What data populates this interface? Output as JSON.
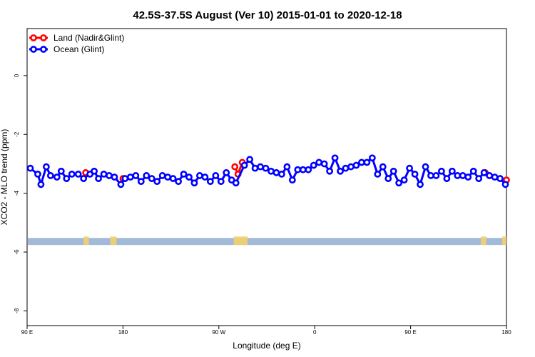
{
  "chart_data": {
    "type": "line",
    "title": "42.5S-37.5S August (Ver 10)   2015-01-01 to 2020-12-18",
    "xlabel": "Longitude (deg E)",
    "ylabel": "XCO2 - MLO trend (ppm)",
    "x_ticks": [
      {
        "x": 90,
        "label": "90 E"
      },
      {
        "x": 180,
        "label": "180"
      },
      {
        "x": 270,
        "label": "90 W"
      },
      {
        "x": 360,
        "label": "0"
      },
      {
        "x": 450,
        "label": "90 E"
      },
      {
        "x": 540,
        "label": "180"
      }
    ],
    "y_ticks": [
      {
        "y": 0,
        "label": "0"
      },
      {
        "y": -2,
        "label": "-2"
      },
      {
        "y": -4,
        "label": "-4"
      },
      {
        "y": -6,
        "label": "-6"
      },
      {
        "y": -8,
        "label": "-8"
      }
    ],
    "xlim": [
      90,
      540
    ],
    "ylim": [
      -8.5,
      1.6
    ],
    "legend_position": "top-left",
    "colors": {
      "land": "#ff0000",
      "ocean": "#0000ff",
      "ocean_band": "#a3b9d9",
      "land_band": "#f2d16b"
    },
    "series": [
      {
        "name": "Land (Nadir&Glint)",
        "color": "#ff0000",
        "points": [
          [
            145,
            -3.3
          ],
          [
            180,
            -3.5
          ],
          [
            285,
            -3.1
          ],
          [
            288,
            -3.35
          ],
          [
            292,
            -2.95
          ],
          [
            520,
            -3.3
          ],
          [
            540,
            -3.55
          ]
        ]
      },
      {
        "name": "Ocean (Glint)",
        "color": "#0000ff",
        "points": [
          [
            93,
            -3.15
          ],
          [
            100,
            -3.35
          ],
          [
            103,
            -3.7
          ],
          [
            108,
            -3.1
          ],
          [
            112,
            -3.4
          ],
          [
            118,
            -3.45
          ],
          [
            122,
            -3.25
          ],
          [
            127,
            -3.5
          ],
          [
            132,
            -3.35
          ],
          [
            138,
            -3.35
          ],
          [
            143,
            -3.5
          ],
          [
            149,
            -3.35
          ],
          [
            153,
            -3.25
          ],
          [
            157,
            -3.5
          ],
          [
            162,
            -3.35
          ],
          [
            167,
            -3.4
          ],
          [
            172,
            -3.45
          ],
          [
            178,
            -3.7
          ],
          [
            182,
            -3.5
          ],
          [
            187,
            -3.45
          ],
          [
            192,
            -3.4
          ],
          [
            197,
            -3.6
          ],
          [
            202,
            -3.4
          ],
          [
            207,
            -3.5
          ],
          [
            212,
            -3.6
          ],
          [
            217,
            -3.4
          ],
          [
            222,
            -3.45
          ],
          [
            227,
            -3.5
          ],
          [
            232,
            -3.6
          ],
          [
            237,
            -3.35
          ],
          [
            242,
            -3.45
          ],
          [
            247,
            -3.65
          ],
          [
            252,
            -3.4
          ],
          [
            257,
            -3.45
          ],
          [
            262,
            -3.6
          ],
          [
            267,
            -3.4
          ],
          [
            272,
            -3.6
          ],
          [
            277,
            -3.3
          ],
          [
            282,
            -3.55
          ],
          [
            286,
            -3.65
          ],
          [
            294,
            -3.05
          ],
          [
            299,
            -2.85
          ],
          [
            304,
            -3.15
          ],
          [
            309,
            -3.1
          ],
          [
            314,
            -3.15
          ],
          [
            319,
            -3.25
          ],
          [
            324,
            -3.3
          ],
          [
            329,
            -3.35
          ],
          [
            334,
            -3.1
          ],
          [
            339,
            -3.55
          ],
          [
            344,
            -3.2
          ],
          [
            349,
            -3.2
          ],
          [
            354,
            -3.2
          ],
          [
            359,
            -3.05
          ],
          [
            364,
            -2.95
          ],
          [
            369,
            -3.0
          ],
          [
            374,
            -3.25
          ],
          [
            379,
            -2.8
          ],
          [
            384,
            -3.25
          ],
          [
            389,
            -3.15
          ],
          [
            394,
            -3.1
          ],
          [
            399,
            -3.05
          ],
          [
            404,
            -2.95
          ],
          [
            409,
            -2.95
          ],
          [
            414,
            -2.8
          ],
          [
            419,
            -3.35
          ],
          [
            424,
            -3.1
          ],
          [
            429,
            -3.5
          ],
          [
            434,
            -3.25
          ],
          [
            439,
            -3.65
          ],
          [
            444,
            -3.55
          ],
          [
            449,
            -3.15
          ],
          [
            454,
            -3.35
          ],
          [
            459,
            -3.7
          ],
          [
            464,
            -3.1
          ],
          [
            469,
            -3.4
          ],
          [
            474,
            -3.4
          ],
          [
            479,
            -3.25
          ],
          [
            484,
            -3.5
          ],
          [
            489,
            -3.25
          ],
          [
            494,
            -3.4
          ],
          [
            499,
            -3.4
          ],
          [
            504,
            -3.45
          ],
          [
            509,
            -3.25
          ],
          [
            514,
            -3.5
          ],
          [
            519,
            -3.3
          ],
          [
            524,
            -3.4
          ],
          [
            529,
            -3.45
          ],
          [
            534,
            -3.5
          ],
          [
            539,
            -3.7
          ]
        ]
      }
    ],
    "surface_band": {
      "y_top": -5.52,
      "y_bottom": -5.76,
      "land_patches": [
        {
          "from": 143,
          "to": 148
        },
        {
          "from": 168,
          "to": 174
        },
        {
          "from": 284,
          "to": 297
        },
        {
          "from": 516,
          "to": 521
        },
        {
          "from": 536,
          "to": 540
        }
      ]
    }
  }
}
